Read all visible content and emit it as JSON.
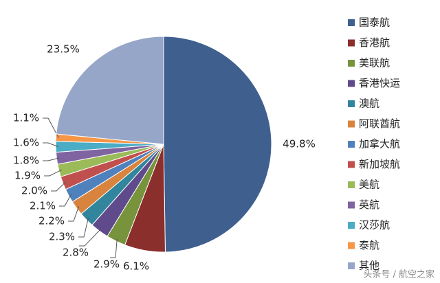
{
  "chart_data": {
    "type": "pie",
    "categories": [
      "国泰航",
      "香港航",
      "美联航",
      "香港快运",
      "澳航",
      "阿联酋航",
      "加拿大航",
      "新加坡航",
      "美航",
      "英航",
      "汉莎航",
      "泰航",
      "其他"
    ],
    "values": [
      49.8,
      6.1,
      2.9,
      2.8,
      2.3,
      2.2,
      2.1,
      2.0,
      1.9,
      1.8,
      1.6,
      1.1,
      23.5
    ],
    "value_labels": [
      "49.8%",
      "6.1%",
      "2.9%",
      "2.8%",
      "2.3%",
      "2.2%",
      "2.1%",
      "2.0%",
      "1.9%",
      "1.8%",
      "1.6%",
      "1.1%",
      "23.5%"
    ],
    "colors": [
      "#3f5f8f",
      "#8b2f2c",
      "#77933c",
      "#5f4b8b",
      "#31859c",
      "#d8843e",
      "#4f81bd",
      "#c0504d",
      "#9bbb59",
      "#8064a2",
      "#4bacc6",
      "#f79646",
      "#95a6c8"
    ],
    "legend": "right"
  },
  "watermark": "头条号 / 航空之家"
}
